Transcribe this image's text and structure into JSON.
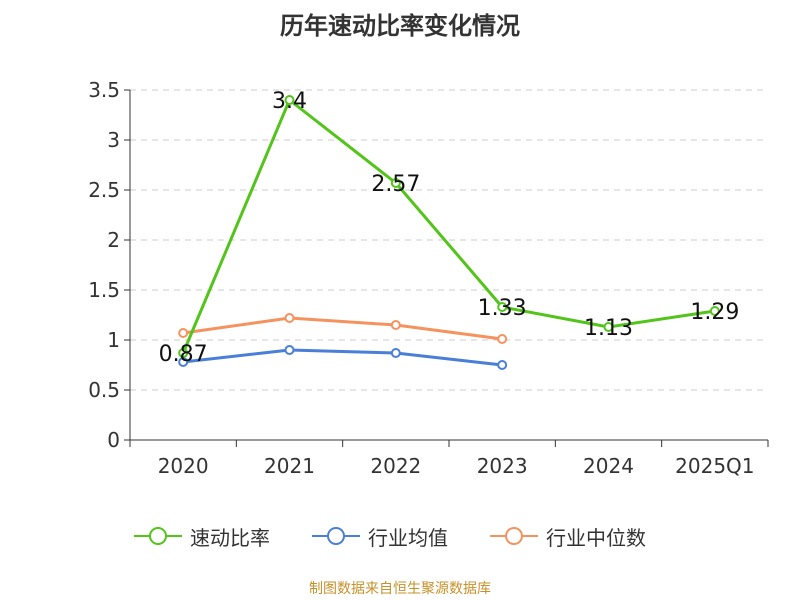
{
  "title": "历年速动比率变化情况",
  "source": "制图数据来自恒生聚源数据库",
  "legend_items": [
    "速动比率",
    "行业均值",
    "行业中位数"
  ],
  "chart_data": {
    "type": "line",
    "title": "历年速动比率变化情况",
    "categories": [
      "2020",
      "2021",
      "2022",
      "2023",
      "2024",
      "2025Q1"
    ],
    "ylim": [
      0,
      3.5
    ],
    "yticks": [
      "0",
      "0.5",
      "1",
      "1.5",
      "2",
      "2.5",
      "3",
      "3.5"
    ],
    "grid": true,
    "legend_position": "bottom",
    "series": [
      {
        "name": "速动比率",
        "color": "#52c41a",
        "values": [
          0.87,
          3.4,
          2.57,
          1.33,
          1.13,
          1.29
        ],
        "labels": [
          "0.87",
          "3.4",
          "2.57",
          "1.33",
          "1.13",
          "1.29"
        ]
      },
      {
        "name": "行业均值",
        "color": "#4a7fd8",
        "values": [
          0.78,
          0.9,
          0.87,
          0.75,
          null,
          null
        ]
      },
      {
        "name": "行业中位数",
        "color": "#f5925e",
        "values": [
          1.07,
          1.22,
          1.15,
          1.01,
          null,
          null
        ]
      }
    ]
  }
}
